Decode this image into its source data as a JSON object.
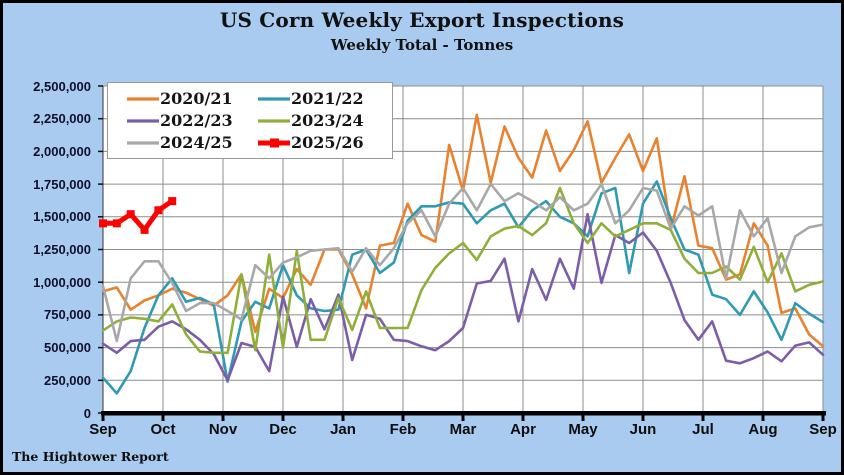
{
  "window": {
    "background": "#A9CBF0",
    "border_color": "#000000"
  },
  "header": {
    "title": "US Corn Weekly Export Inspections",
    "subtitle": "Weekly Total - Tonnes"
  },
  "footer": {
    "source": "The Hightower Report"
  },
  "chart_data": {
    "type": "line",
    "title": "US Corn Weekly Export Inspections",
    "subtitle": "Weekly Total - Tonnes",
    "x_axis": {
      "tick_labels": [
        "Sep",
        "Oct",
        "Nov",
        "Dec",
        "Jan",
        "Feb",
        "Mar",
        "Apr",
        "May",
        "Jun",
        "Jul",
        "Aug",
        "Sep"
      ],
      "points_per_series": 53
    },
    "y_axis": {
      "min": 0,
      "max": 2500000,
      "step": 250000,
      "number_format": "comma"
    },
    "grid": true,
    "gridline_color": "#8C8C8C",
    "legend_position": "top-left",
    "series": [
      {
        "name": "2020/21",
        "color": "#E8822E",
        "marker": "none",
        "values": [
          930000,
          960000,
          790000,
          860000,
          900000,
          950000,
          920000,
          870000,
          820000,
          900000,
          1060000,
          620000,
          950000,
          880000,
          1100000,
          980000,
          1250000,
          1250000,
          1060000,
          800000,
          1280000,
          1300000,
          1600000,
          1360000,
          1310000,
          2050000,
          1700000,
          2280000,
          1760000,
          2190000,
          1950000,
          1800000,
          2160000,
          1850000,
          2010000,
          2230000,
          1760000,
          1950000,
          2130000,
          1850000,
          2100000,
          1400000,
          1810000,
          1280000,
          1260000,
          1020000,
          1060000,
          1450000,
          1280000,
          765000,
          800000,
          600000,
          510000
        ]
      },
      {
        "name": "2021/22",
        "color": "#2F9AB2",
        "marker": "none",
        "values": [
          270000,
          150000,
          320000,
          650000,
          900000,
          1030000,
          850000,
          880000,
          830000,
          240000,
          700000,
          850000,
          800000,
          1130000,
          900000,
          800000,
          780000,
          790000,
          1210000,
          1250000,
          1070000,
          1150000,
          1470000,
          1580000,
          1580000,
          1610000,
          1600000,
          1450000,
          1550000,
          1600000,
          1420000,
          1550000,
          1620000,
          1500000,
          1450000,
          1350000,
          1680000,
          1720000,
          1070000,
          1600000,
          1770000,
          1490000,
          1250000,
          1210000,
          905000,
          870000,
          750000,
          930000,
          770000,
          560000,
          840000,
          760000,
          695000
        ]
      },
      {
        "name": "2022/23",
        "color": "#7B5EA7",
        "marker": "none",
        "values": [
          530000,
          460000,
          550000,
          560000,
          660000,
          700000,
          640000,
          560000,
          450000,
          250000,
          535000,
          505000,
          320000,
          890000,
          505000,
          870000,
          640000,
          905000,
          405000,
          750000,
          720000,
          560000,
          550000,
          510000,
          480000,
          550000,
          650000,
          990000,
          1010000,
          1180000,
          700000,
          1100000,
          865000,
          1180000,
          950000,
          1520000,
          995000,
          1360000,
          1300000,
          1380000,
          1240000,
          995000,
          710000,
          560000,
          700000,
          400000,
          380000,
          420000,
          470000,
          395000,
          515000,
          540000,
          445000
        ]
      },
      {
        "name": "2023/24",
        "color": "#8FAF3A",
        "marker": "none",
        "values": [
          630000,
          700000,
          730000,
          720000,
          700000,
          830000,
          600000,
          470000,
          460000,
          460000,
          1060000,
          480000,
          1210000,
          500000,
          1240000,
          560000,
          560000,
          880000,
          635000,
          930000,
          650000,
          650000,
          650000,
          940000,
          1110000,
          1220000,
          1300000,
          1170000,
          1350000,
          1410000,
          1430000,
          1360000,
          1450000,
          1720000,
          1450000,
          1300000,
          1450000,
          1350000,
          1400000,
          1450000,
          1450000,
          1400000,
          1180000,
          1070000,
          1070000,
          1120000,
          1020000,
          1270000,
          1000000,
          1220000,
          930000,
          980000,
          1005000
        ]
      },
      {
        "name": "2024/25",
        "color": "#A8A8A8",
        "marker": "none",
        "values": [
          970000,
          550000,
          1030000,
          1160000,
          1160000,
          995000,
          780000,
          840000,
          840000,
          780000,
          715000,
          1130000,
          1030000,
          1150000,
          1190000,
          1240000,
          1250000,
          1260000,
          1080000,
          1260000,
          1130000,
          1260000,
          1450000,
          1550000,
          1350000,
          1600000,
          1720000,
          1550000,
          1750000,
          1620000,
          1680000,
          1620000,
          1550000,
          1650000,
          1550000,
          1600000,
          1750000,
          1450000,
          1550000,
          1720000,
          1700000,
          1410000,
          1580000,
          1510000,
          1580000,
          1030000,
          1550000,
          1350000,
          1490000,
          1070000,
          1350000,
          1420000,
          1440000
        ]
      },
      {
        "name": "2025/26",
        "color": "#FF0000",
        "marker": "square",
        "line_width": 5,
        "values": [
          1450000,
          1450000,
          1520000,
          1400000,
          1550000,
          1620000
        ]
      }
    ]
  }
}
